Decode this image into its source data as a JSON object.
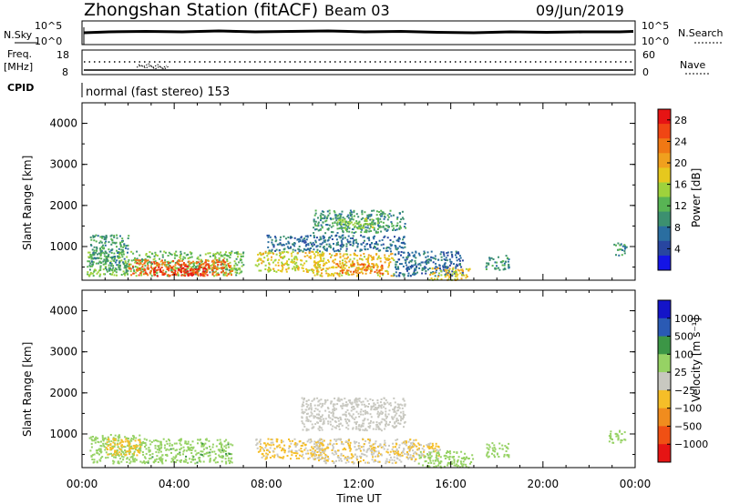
{
  "header": {
    "station": "Zhongshan Station (fitACF)",
    "beam": "Beam 03",
    "date": "09/Jun/2019"
  },
  "params": {
    "nsky_label": "N.Sky",
    "nsearch_label": "N.Search",
    "freq_label": "Freq.",
    "freq_unit": "[MHz]",
    "nave_label": "Nave",
    "cpid_label": "CPID",
    "cpid_text": "normal (fast stereo) 153",
    "noise_ticks": [
      "10^5",
      "10^0"
    ],
    "freq_ticks": [
      "18",
      "8"
    ],
    "nave_ticks": [
      "60",
      "0"
    ]
  },
  "colors": {
    "power": [
      "#1414e6",
      "#2846a0",
      "#2a6ea0",
      "#3c9070",
      "#58b454",
      "#9ed23c",
      "#e6c81e",
      "#f0a01e",
      "#f07814",
      "#f04614",
      "#e61414"
    ],
    "velocity": [
      "#e61414",
      "#f05014",
      "#f08c1e",
      "#f5be28",
      "#c8c8c0",
      "#96d264",
      "#3c9646",
      "#2a5ab4",
      "#1414c8"
    ]
  },
  "chart_data": [
    {
      "type": "heatmap",
      "title": "",
      "xlabel": "Time UT",
      "ylabel": "Slant Range [km]",
      "xlim": [
        0,
        24
      ],
      "ylim": [
        180,
        4500
      ],
      "x_ticks": [
        "00:00",
        "04:00",
        "08:00",
        "12:00",
        "16:00",
        "20:00",
        "00:00"
      ],
      "y_ticks": [
        "1000",
        "2000",
        "3000",
        "4000"
      ],
      "colorbar": {
        "label": "Power [dB]",
        "ticks": [
          "4",
          "8",
          "12",
          "16",
          "20",
          "24",
          "28"
        ],
        "range": [
          0,
          30
        ]
      },
      "regions": [
        {
          "t": [
            0.2,
            7.0
          ],
          "r": [
            300,
            900
          ],
          "level": 13
        },
        {
          "t": [
            2.0,
            6.5
          ],
          "r": [
            300,
            700
          ],
          "level": 24
        },
        {
          "t": [
            3.0,
            5.5
          ],
          "r": [
            300,
            550
          ],
          "level": 28
        },
        {
          "t": [
            0.3,
            2.0
          ],
          "r": [
            400,
            1300
          ],
          "level": 10
        },
        {
          "t": [
            7.5,
            10.5
          ],
          "r": [
            400,
            900
          ],
          "level": 17
        },
        {
          "t": [
            10.0,
            13.5
          ],
          "r": [
            300,
            850
          ],
          "level": 18
        },
        {
          "t": [
            11.0,
            13.0
          ],
          "r": [
            350,
            600
          ],
          "level": 23
        },
        {
          "t": [
            8.0,
            14.0
          ],
          "r": [
            900,
            1300
          ],
          "level": 7
        },
        {
          "t": [
            10.0,
            14.0
          ],
          "r": [
            1350,
            1900
          ],
          "level": 10
        },
        {
          "t": [
            11.0,
            13.0
          ],
          "r": [
            1450,
            1700
          ],
          "level": 14
        },
        {
          "t": [
            13.5,
            16.5
          ],
          "r": [
            300,
            900
          ],
          "level": 7
        },
        {
          "t": [
            15.0,
            16.8
          ],
          "r": [
            200,
            500
          ],
          "level": 18
        },
        {
          "t": [
            17.5,
            18.5
          ],
          "r": [
            450,
            800
          ],
          "level": 10
        },
        {
          "t": [
            23.0,
            23.6
          ],
          "r": [
            800,
            1100
          ],
          "level": 9
        }
      ]
    },
    {
      "type": "heatmap",
      "title": "",
      "xlabel": "Time UT",
      "ylabel": "Slant Range [km]",
      "xlim": [
        0,
        24
      ],
      "ylim": [
        180,
        4500
      ],
      "x_ticks": [
        "00:00",
        "04:00",
        "08:00",
        "12:00",
        "16:00",
        "20:00",
        "00:00"
      ],
      "y_ticks": [
        "1000",
        "2000",
        "3000",
        "4000"
      ],
      "colorbar": {
        "label": "Velocity [m s⁻¹]",
        "ticks": [
          "1000",
          "500",
          "100",
          "25",
          "−25",
          "−100",
          "−500",
          "−1000"
        ],
        "range": [
          -1200,
          1200
        ]
      },
      "regions": [
        {
          "t": [
            0.3,
            2.5
          ],
          "r": [
            300,
            1000
          ],
          "level": -300
        },
        {
          "t": [
            2.5,
            6.5
          ],
          "r": [
            300,
            900
          ],
          "level": -350
        },
        {
          "t": [
            1.0,
            2.5
          ],
          "r": [
            500,
            900
          ],
          "level": 300
        },
        {
          "t": [
            7.5,
            10.5
          ],
          "r": [
            400,
            900
          ],
          "level": 150
        },
        {
          "t": [
            10.0,
            14.5
          ],
          "r": [
            300,
            900
          ],
          "level": 120
        },
        {
          "t": [
            9.5,
            14.0
          ],
          "r": [
            1100,
            1900
          ],
          "level": 0
        },
        {
          "t": [
            14.0,
            15.5
          ],
          "r": [
            400,
            800
          ],
          "level": 150
        },
        {
          "t": [
            14.5,
            17.0
          ],
          "r": [
            200,
            600
          ],
          "level": -250
        },
        {
          "t": [
            17.5,
            18.5
          ],
          "r": [
            450,
            800
          ],
          "level": -300
        },
        {
          "t": [
            22.8,
            23.6
          ],
          "r": [
            800,
            1100
          ],
          "level": -200
        }
      ]
    }
  ]
}
